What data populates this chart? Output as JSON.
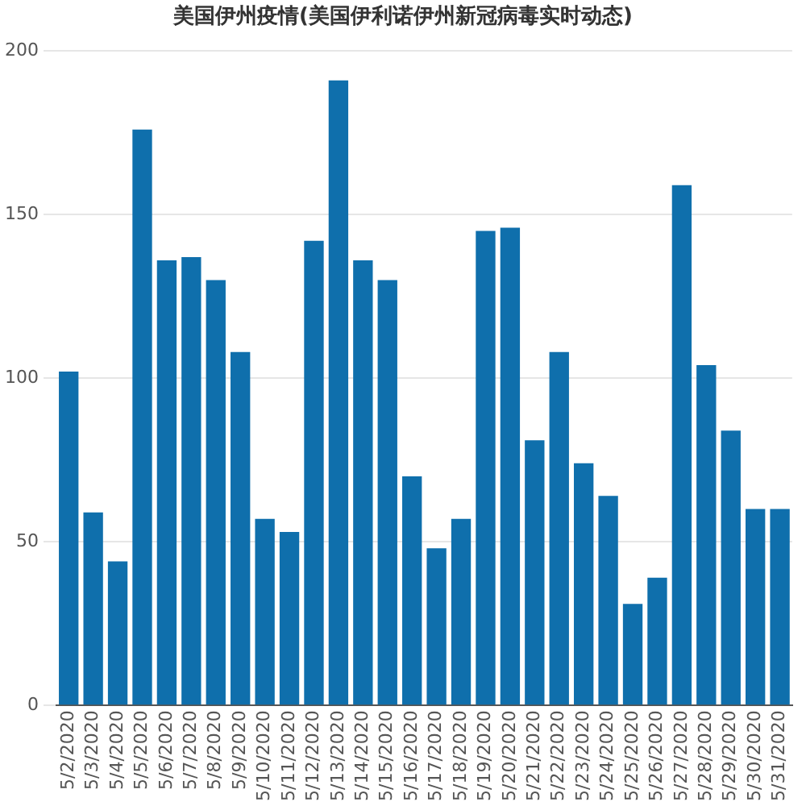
{
  "chart_data": {
    "type": "bar",
    "title": "美国伊州疫情(美国伊利诺伊州新冠病毒实时动态)",
    "categories": [
      "5/2/2020",
      "5/3/2020",
      "5/4/2020",
      "5/5/2020",
      "5/6/2020",
      "5/7/2020",
      "5/8/2020",
      "5/9/2020",
      "5/10/2020",
      "5/11/2020",
      "5/12/2020",
      "5/13/2020",
      "5/14/2020",
      "5/15/2020",
      "5/16/2020",
      "5/17/2020",
      "5/18/2020",
      "5/19/2020",
      "5/20/2020",
      "5/21/2020",
      "5/22/2020",
      "5/23/2020",
      "5/24/2020",
      "5/25/2020",
      "5/26/2020",
      "5/27/2020",
      "5/28/2020",
      "5/29/2020",
      "5/30/2020",
      "5/31/2020"
    ],
    "values": [
      102,
      59,
      44,
      176,
      136,
      137,
      130,
      108,
      57,
      53,
      142,
      191,
      136,
      130,
      70,
      48,
      57,
      145,
      146,
      81,
      108,
      74,
      64,
      31,
      39,
      159,
      104,
      84,
      60,
      60
    ],
    "color": "#0f6fac",
    "ylim": [
      0,
      200
    ],
    "yticks": [
      0,
      50,
      100,
      150,
      200
    ],
    "grid": "y"
  }
}
